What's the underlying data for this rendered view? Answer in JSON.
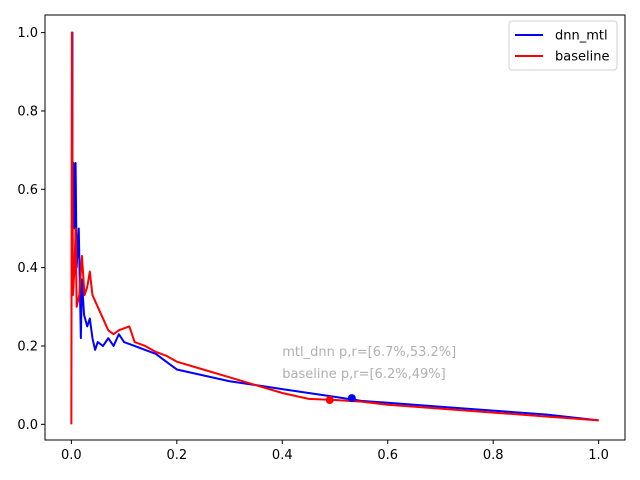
{
  "chart_data": {
    "type": "line",
    "title": "",
    "xlabel": "",
    "ylabel": "",
    "xlim": [
      -0.05,
      1.05
    ],
    "ylim": [
      -0.04,
      1.045
    ],
    "x_ticks": [
      0.0,
      0.2,
      0.4,
      0.6,
      0.8,
      1.0
    ],
    "x_tick_labels": [
      "0.0",
      "0.2",
      "0.4",
      "0.6",
      "0.8",
      "1.0"
    ],
    "y_ticks": [
      0.0,
      0.2,
      0.4,
      0.6,
      0.8,
      1.0
    ],
    "y_tick_labels": [
      "0.0",
      "0.2",
      "0.4",
      "0.6",
      "0.8",
      "1.0"
    ],
    "grid": false,
    "legend_position": "top-right",
    "series": [
      {
        "name": "dnn_mtl",
        "color": "#0000ff",
        "points": [
          [
            0.0,
            1.0
          ],
          [
            0.002,
            1.0
          ],
          [
            0.002,
            0.5
          ],
          [
            0.004,
            0.667
          ],
          [
            0.006,
            0.5
          ],
          [
            0.008,
            0.667
          ],
          [
            0.01,
            0.4
          ],
          [
            0.014,
            0.5
          ],
          [
            0.018,
            0.22
          ],
          [
            0.02,
            0.37
          ],
          [
            0.024,
            0.28
          ],
          [
            0.03,
            0.25
          ],
          [
            0.035,
            0.27
          ],
          [
            0.04,
            0.22
          ],
          [
            0.045,
            0.19
          ],
          [
            0.05,
            0.21
          ],
          [
            0.06,
            0.2
          ],
          [
            0.07,
            0.22
          ],
          [
            0.08,
            0.2
          ],
          [
            0.09,
            0.23
          ],
          [
            0.1,
            0.21
          ],
          [
            0.12,
            0.2
          ],
          [
            0.14,
            0.19
          ],
          [
            0.16,
            0.18
          ],
          [
            0.18,
            0.16
          ],
          [
            0.2,
            0.14
          ],
          [
            0.25,
            0.125
          ],
          [
            0.3,
            0.11
          ],
          [
            0.35,
            0.1
          ],
          [
            0.4,
            0.09
          ],
          [
            0.45,
            0.08
          ],
          [
            0.5,
            0.07
          ],
          [
            0.55,
            0.06
          ],
          [
            0.6,
            0.055
          ],
          [
            0.7,
            0.045
          ],
          [
            0.8,
            0.035
          ],
          [
            0.9,
            0.025
          ],
          [
            1.0,
            0.01
          ]
        ],
        "marker": [
          0.532,
          0.067
        ]
      },
      {
        "name": "baseline",
        "color": "#ff0000",
        "points": [
          [
            0.0,
            0.0
          ],
          [
            0.001,
            1.0
          ],
          [
            0.003,
            0.33
          ],
          [
            0.006,
            0.4
          ],
          [
            0.008,
            0.5
          ],
          [
            0.01,
            0.3
          ],
          [
            0.015,
            0.33
          ],
          [
            0.02,
            0.43
          ],
          [
            0.025,
            0.33
          ],
          [
            0.03,
            0.35
          ],
          [
            0.035,
            0.39
          ],
          [
            0.04,
            0.33
          ],
          [
            0.05,
            0.3
          ],
          [
            0.06,
            0.27
          ],
          [
            0.07,
            0.24
          ],
          [
            0.08,
            0.23
          ],
          [
            0.09,
            0.24
          ],
          [
            0.1,
            0.245
          ],
          [
            0.11,
            0.25
          ],
          [
            0.12,
            0.21
          ],
          [
            0.14,
            0.2
          ],
          [
            0.16,
            0.185
          ],
          [
            0.18,
            0.175
          ],
          [
            0.2,
            0.16
          ],
          [
            0.25,
            0.14
          ],
          [
            0.3,
            0.12
          ],
          [
            0.35,
            0.1
          ],
          [
            0.4,
            0.08
          ],
          [
            0.45,
            0.065
          ],
          [
            0.5,
            0.062
          ],
          [
            0.55,
            0.058
          ],
          [
            0.6,
            0.05
          ],
          [
            0.7,
            0.04
          ],
          [
            0.8,
            0.03
          ],
          [
            0.9,
            0.02
          ],
          [
            1.0,
            0.01
          ]
        ],
        "marker": [
          0.49,
          0.062
        ]
      }
    ],
    "annotations": [
      {
        "text": "mtl_dnn p,r=[6.7%,53.2%]",
        "x": 0.4,
        "y": 0.175
      },
      {
        "text": "baseline p,r=[6.2%,49%]",
        "x": 0.4,
        "y": 0.118
      }
    ]
  }
}
